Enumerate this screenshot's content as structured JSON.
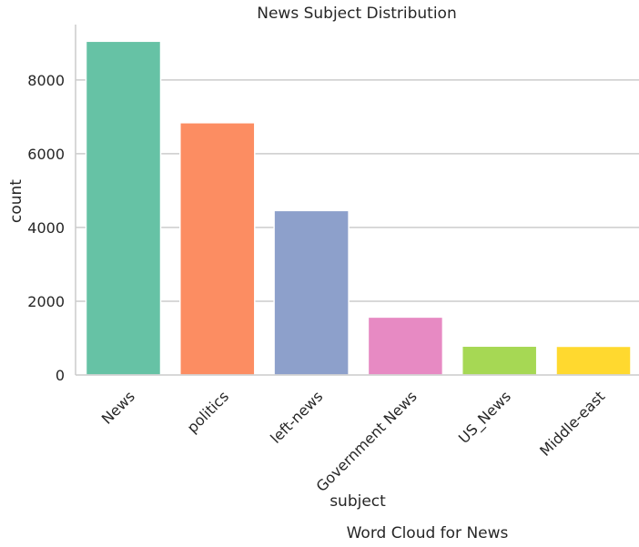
{
  "chart_data": {
    "type": "bar",
    "title": "News Subject Distribution",
    "xlabel": "subject",
    "ylabel": "count",
    "categories": [
      "News",
      "politics",
      "left-news",
      "Government News",
      "US_News",
      "Middle-east"
    ],
    "values": [
      9050,
      6841,
      4459,
      1570,
      783,
      778
    ],
    "colors": [
      "#66c2a5",
      "#fc8d62",
      "#8da0cb",
      "#e78ac3",
      "#a6d854",
      "#ffd92f"
    ],
    "ylim": [
      0,
      9502
    ],
    "yticks": [
      0,
      2000,
      4000,
      6000,
      8000
    ],
    "grid": true
  },
  "caption": "Word Cloud for News"
}
